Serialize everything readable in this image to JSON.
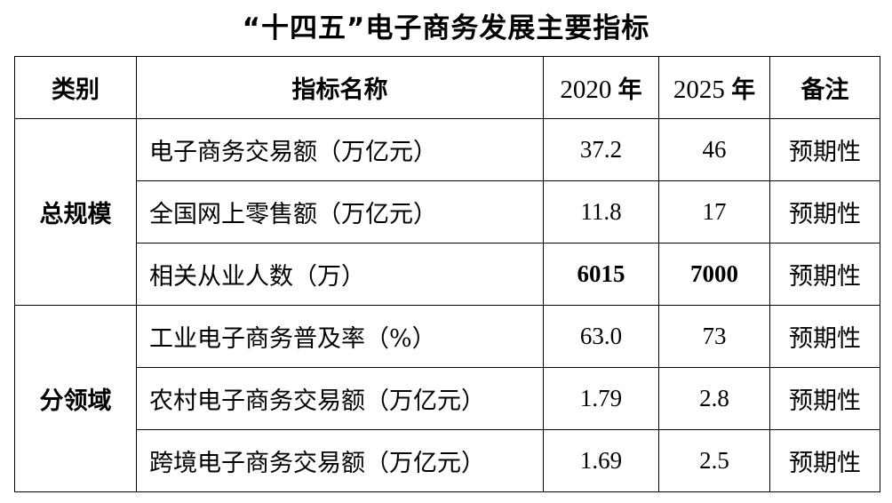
{
  "title": "“十四五”电子商务发展主要指标",
  "table": {
    "headers": {
      "category": "类别",
      "name": "指标名称",
      "year_2020": "2020",
      "year_2025": "2025",
      "year_suffix": "年",
      "note": "备注"
    },
    "groups": [
      {
        "category": "总规模",
        "rows": [
          {
            "name": "电子商务交易额（万亿元）",
            "v2020": "37.2",
            "v2025": "46",
            "note": "预期性"
          },
          {
            "name": "全国网上零售额（万亿元）",
            "v2020": "11.8",
            "v2025": "17",
            "note": "预期性"
          },
          {
            "name": "相关从业人数（万）",
            "v2020": "6015",
            "v2025": "7000",
            "note": "预期性"
          }
        ]
      },
      {
        "category": "分领域",
        "rows": [
          {
            "name": "工业电子商务普及率（%）",
            "v2020": "63.0",
            "v2025": "73",
            "note": "预期性"
          },
          {
            "name": "农村电子商务交易额（万亿元）",
            "v2020": "1.79",
            "v2025": "2.8",
            "note": "预期性"
          },
          {
            "name": "跨境电子商务交易额（万亿元）",
            "v2020": "1.69",
            "v2025": "2.5",
            "note": "预期性"
          }
        ]
      }
    ]
  }
}
